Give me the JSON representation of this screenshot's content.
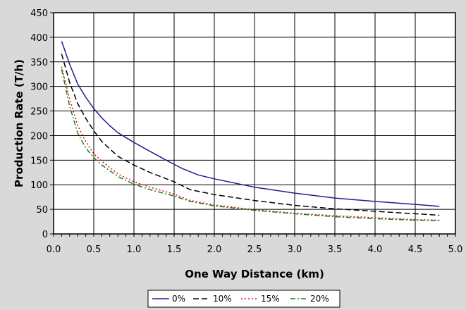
{
  "chart_data": {
    "type": "line",
    "title": "",
    "xlabel": "One Way Distance (km)",
    "ylabel": "Production Rate (T/h)",
    "xlim": [
      0,
      5
    ],
    "ylim": [
      0,
      450
    ],
    "xticks": [
      "0.0",
      "0.5",
      "1.0",
      "1.5",
      "2.0",
      "2.5",
      "3.0",
      "3.5",
      "4.0",
      "4.5",
      "5.0"
    ],
    "yticks": [
      "0",
      "50",
      "100",
      "150",
      "200",
      "250",
      "300",
      "350",
      "400",
      "450"
    ],
    "grid": true,
    "legend_position": "bottom",
    "series": [
      {
        "name": "0%",
        "color": "#1f1f8f",
        "dash": "solid",
        "x": [
          0.1,
          0.2,
          0.3,
          0.4,
          0.5,
          0.6,
          0.7,
          0.8,
          1.0,
          1.2,
          1.4,
          1.6,
          1.8,
          2.0,
          2.5,
          3.0,
          3.5,
          4.0,
          4.5,
          4.8
        ],
        "y": [
          392,
          345,
          305,
          278,
          255,
          236,
          220,
          206,
          186,
          168,
          150,
          133,
          120,
          112,
          95,
          83,
          73,
          66,
          60,
          56
        ]
      },
      {
        "name": "10%",
        "color": "#000000",
        "dash": "long-dash",
        "x": [
          0.1,
          0.2,
          0.3,
          0.4,
          0.5,
          0.6,
          0.8,
          1.0,
          1.2,
          1.5,
          1.7,
          2.0,
          2.5,
          3.0,
          3.5,
          4.0,
          4.5,
          4.8
        ],
        "y": [
          366,
          308,
          265,
          235,
          210,
          188,
          158,
          140,
          125,
          106,
          90,
          80,
          68,
          58,
          51,
          46,
          41,
          38
        ]
      },
      {
        "name": "15%",
        "color": "#e01010",
        "dash": "dot",
        "x": [
          0.1,
          0.2,
          0.3,
          0.4,
          0.5,
          0.6,
          0.8,
          1.0,
          1.2,
          1.5,
          1.7,
          2.0,
          2.5,
          3.0,
          3.5,
          4.0,
          4.5,
          4.8
        ],
        "y": [
          340,
          275,
          220,
          188,
          163,
          148,
          122,
          106,
          95,
          81,
          68,
          59,
          49,
          42,
          37,
          33,
          29,
          28
        ]
      },
      {
        "name": "20%",
        "color": "#1a7f1a",
        "dash": "dash-dot",
        "x": [
          0.1,
          0.2,
          0.3,
          0.4,
          0.5,
          0.6,
          0.8,
          1.0,
          1.2,
          1.5,
          1.7,
          2.0,
          2.5,
          3.0,
          3.5,
          4.0,
          4.5,
          4.8
        ],
        "y": [
          335,
          260,
          205,
          175,
          155,
          140,
          117,
          101,
          90,
          77,
          66,
          57,
          48,
          41,
          35,
          31,
          28,
          27
        ]
      }
    ]
  }
}
